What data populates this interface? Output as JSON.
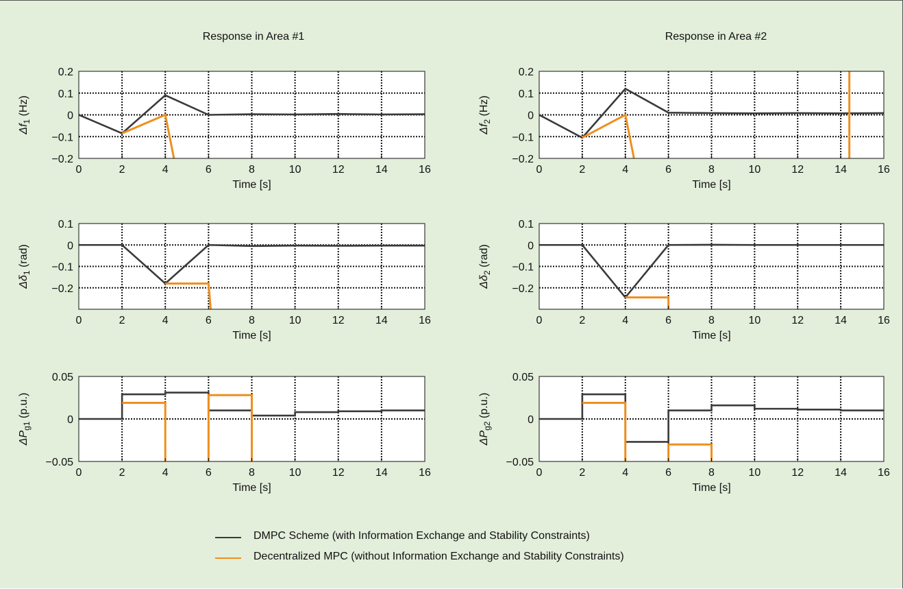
{
  "figure": {
    "title_area1": "Response in Area #1",
    "title_area2": "Response in Area #2",
    "colors": {
      "dmpc": "#3a3a3a",
      "decentralized": "#ef8e1e",
      "background": "#e3eedb",
      "grid": "#111111"
    }
  },
  "legend": {
    "items": [
      {
        "label": "DMPC Scheme (with Information Exchange and Stability Constraints)",
        "color": "#3a3a3a"
      },
      {
        "label": "Decentralized MPC (without Information Exchange and Stability Constraints)",
        "color": "#ef8e1e"
      }
    ]
  },
  "chart_data": [
    {
      "type": "line",
      "ylabel": "Δf1 (Hz)",
      "ylabel_main": "Δf",
      "ylabel_sub": "1",
      "ylabel_unit": " (Hz)",
      "xlabel": "Time [s]",
      "xlim": [
        0,
        16
      ],
      "ylim": [
        -0.2,
        0.2
      ],
      "xticks": [
        0,
        2,
        4,
        6,
        8,
        10,
        12,
        14,
        16
      ],
      "yticks": [
        -0.2,
        -0.1,
        0,
        0.1,
        0.2
      ],
      "ytick_labels": [
        "−0.2",
        "−0.1",
        "0",
        "0.1",
        "0.2"
      ],
      "grid": true,
      "series": [
        {
          "name": "DMPC Scheme (with Information Exchange and Stability Constraints)",
          "color": "#3a3a3a",
          "x": [
            0,
            2,
            4,
            6,
            8,
            10,
            12,
            14,
            16
          ],
          "y": [
            0,
            -0.085,
            0.09,
            0.0,
            0.003,
            0.002,
            0.004,
            0.002,
            0.003
          ]
        },
        {
          "name": "Decentralized MPC (without Information Exchange and Stability Constraints)",
          "color": "#ef8e1e",
          "x": [
            2,
            4,
            4.4
          ],
          "y": [
            -0.085,
            0.0,
            -0.2
          ]
        }
      ]
    },
    {
      "type": "line",
      "ylabel": "Δf2 (Hz)",
      "ylabel_main": "Δf",
      "ylabel_sub": "2",
      "ylabel_unit": " (Hz)",
      "xlabel": "Time [s]",
      "xlim": [
        0,
        16
      ],
      "ylim": [
        -0.2,
        0.2
      ],
      "xticks": [
        0,
        2,
        4,
        6,
        8,
        10,
        12,
        14,
        16
      ],
      "yticks": [
        -0.2,
        -0.1,
        0,
        0.1,
        0.2
      ],
      "ytick_labels": [
        "−0.2",
        "−0.1",
        "0",
        "0.1",
        "0.2"
      ],
      "grid": true,
      "series": [
        {
          "name": "DMPC Scheme (with Information Exchange and Stability Constraints)",
          "color": "#3a3a3a",
          "x": [
            0,
            2,
            4,
            6,
            8,
            10,
            12,
            14,
            16
          ],
          "y": [
            0,
            -0.105,
            0.12,
            0.01,
            0.008,
            0.007,
            0.008,
            0.007,
            0.008
          ]
        },
        {
          "name": "Decentralized MPC (without Information Exchange and Stability Constraints)",
          "color": "#ef8e1e",
          "x": [
            2,
            4,
            4.4
          ],
          "y": [
            -0.105,
            0.0,
            -0.2
          ]
        },
        {
          "name": "Decentralized MPC (without Information Exchange and Stability Constraints)",
          "color": "#ef8e1e",
          "x": [
            14.4,
            14.4
          ],
          "y": [
            -0.2,
            0.2
          ]
        }
      ]
    },
    {
      "type": "line",
      "ylabel": "Δδ1 (rad)",
      "ylabel_main": "Δδ",
      "ylabel_sub": "1",
      "ylabel_unit": " (rad)",
      "xlabel": "Time [s]",
      "xlim": [
        0,
        16
      ],
      "ylim": [
        -0.3,
        0.1
      ],
      "xticks": [
        0,
        2,
        4,
        6,
        8,
        10,
        12,
        14,
        16
      ],
      "yticks": [
        -0.2,
        -0.1,
        0,
        0.1
      ],
      "ytick_labels": [
        "−0.2",
        "−0.1",
        "0",
        "0.1"
      ],
      "grid": true,
      "series": [
        {
          "name": "DMPC Scheme (with Information Exchange and Stability Constraints)",
          "color": "#3a3a3a",
          "x": [
            0,
            2,
            4,
            6,
            8,
            10,
            12,
            14,
            16
          ],
          "y": [
            0,
            0,
            -0.18,
            0,
            -0.005,
            -0.003,
            -0.004,
            -0.003,
            -0.003
          ]
        },
        {
          "name": "Decentralized MPC (without Information Exchange and Stability Constraints)",
          "color": "#ef8e1e",
          "x": [
            4,
            6,
            6.1
          ],
          "y": [
            -0.18,
            -0.18,
            -0.3
          ]
        }
      ]
    },
    {
      "type": "line",
      "ylabel": "Δδ2 (rad)",
      "ylabel_main": "Δδ",
      "ylabel_sub": "2",
      "ylabel_unit": " (rad)",
      "xlabel": "Time [s]",
      "xlim": [
        0,
        16
      ],
      "ylim": [
        -0.3,
        0.1
      ],
      "xticks": [
        0,
        2,
        4,
        6,
        8,
        10,
        12,
        14,
        16
      ],
      "yticks": [
        -0.2,
        -0.1,
        0,
        0.1
      ],
      "ytick_labels": [
        "−0.2",
        "−0.1",
        "0",
        "0.1"
      ],
      "grid": true,
      "series": [
        {
          "name": "DMPC Scheme (with Information Exchange and Stability Constraints)",
          "color": "#3a3a3a",
          "x": [
            0,
            2,
            4,
            6,
            8,
            10,
            12,
            14,
            16
          ],
          "y": [
            0,
            0,
            -0.245,
            0,
            0.001,
            0,
            0,
            0,
            0
          ]
        },
        {
          "name": "Decentralized MPC (without Information Exchange and Stability Constraints)",
          "color": "#ef8e1e",
          "x": [
            4,
            6,
            6
          ],
          "y": [
            -0.245,
            -0.245,
            -0.3
          ]
        }
      ]
    },
    {
      "type": "line",
      "ylabel": "ΔPg1 (p.u.)",
      "ylabel_main": "ΔP",
      "ylabel_sub": "g1",
      "ylabel_unit": " (p.u.)",
      "xlabel": "Time [s]",
      "xlim": [
        0,
        16
      ],
      "ylim": [
        -0.05,
        0.05
      ],
      "xticks": [
        0,
        2,
        4,
        6,
        8,
        10,
        12,
        14,
        16
      ],
      "yticks": [
        -0.05,
        0,
        0.05
      ],
      "ytick_labels": [
        "−0.05",
        "0",
        "0.05"
      ],
      "grid": true,
      "series": [
        {
          "name": "DMPC Scheme (with Information Exchange and Stability Constraints)",
          "color": "#3a3a3a",
          "x": [
            0,
            2,
            2,
            4,
            4,
            6,
            6,
            8,
            8,
            10,
            10,
            12,
            12,
            14,
            14,
            16
          ],
          "y": [
            0,
            0,
            0.029,
            0.029,
            0.031,
            0.031,
            0.01,
            0.01,
            0.004,
            0.004,
            0.008,
            0.008,
            0.009,
            0.009,
            0.01,
            0.01
          ]
        },
        {
          "name": "Decentralized MPC (without Information Exchange and Stability Constraints)",
          "color": "#ef8e1e",
          "x": [
            2,
            4,
            4
          ],
          "y": [
            0.019,
            0.019,
            -0.05
          ]
        },
        {
          "name": "Decentralized MPC (without Information Exchange and Stability Constraints)",
          "color": "#ef8e1e",
          "x": [
            6,
            6,
            8,
            8
          ],
          "y": [
            -0.05,
            0.028,
            0.028,
            -0.05
          ]
        }
      ]
    },
    {
      "type": "line",
      "ylabel": "ΔPg2 (p.u.)",
      "ylabel_main": "ΔP",
      "ylabel_sub": "g2",
      "ylabel_unit": " (p.u.)",
      "xlabel": "Time [s]",
      "xlim": [
        0,
        16
      ],
      "ylim": [
        -0.05,
        0.05
      ],
      "xticks": [
        0,
        2,
        4,
        6,
        8,
        10,
        12,
        14,
        16
      ],
      "yticks": [
        -0.05,
        0,
        0.05
      ],
      "ytick_labels": [
        "−0.05",
        "0",
        "0.05"
      ],
      "grid": true,
      "series": [
        {
          "name": "DMPC Scheme (with Information Exchange and Stability Constraints)",
          "color": "#3a3a3a",
          "x": [
            0,
            2,
            2,
            4,
            4,
            6,
            6,
            8,
            8,
            10,
            10,
            12,
            12,
            14,
            14,
            16
          ],
          "y": [
            0,
            0,
            0.029,
            0.029,
            -0.027,
            -0.027,
            0.01,
            0.01,
            0.016,
            0.016,
            0.012,
            0.012,
            0.011,
            0.011,
            0.01,
            0.01
          ]
        },
        {
          "name": "Decentralized MPC (without Information Exchange and Stability Constraints)",
          "color": "#ef8e1e",
          "x": [
            2,
            4,
            4
          ],
          "y": [
            0.019,
            0.019,
            -0.05
          ]
        },
        {
          "name": "Decentralized MPC (without Information Exchange and Stability Constraints)",
          "color": "#ef8e1e",
          "x": [
            6,
            6,
            8,
            8
          ],
          "y": [
            -0.05,
            -0.03,
            -0.03,
            -0.05
          ]
        }
      ]
    }
  ]
}
